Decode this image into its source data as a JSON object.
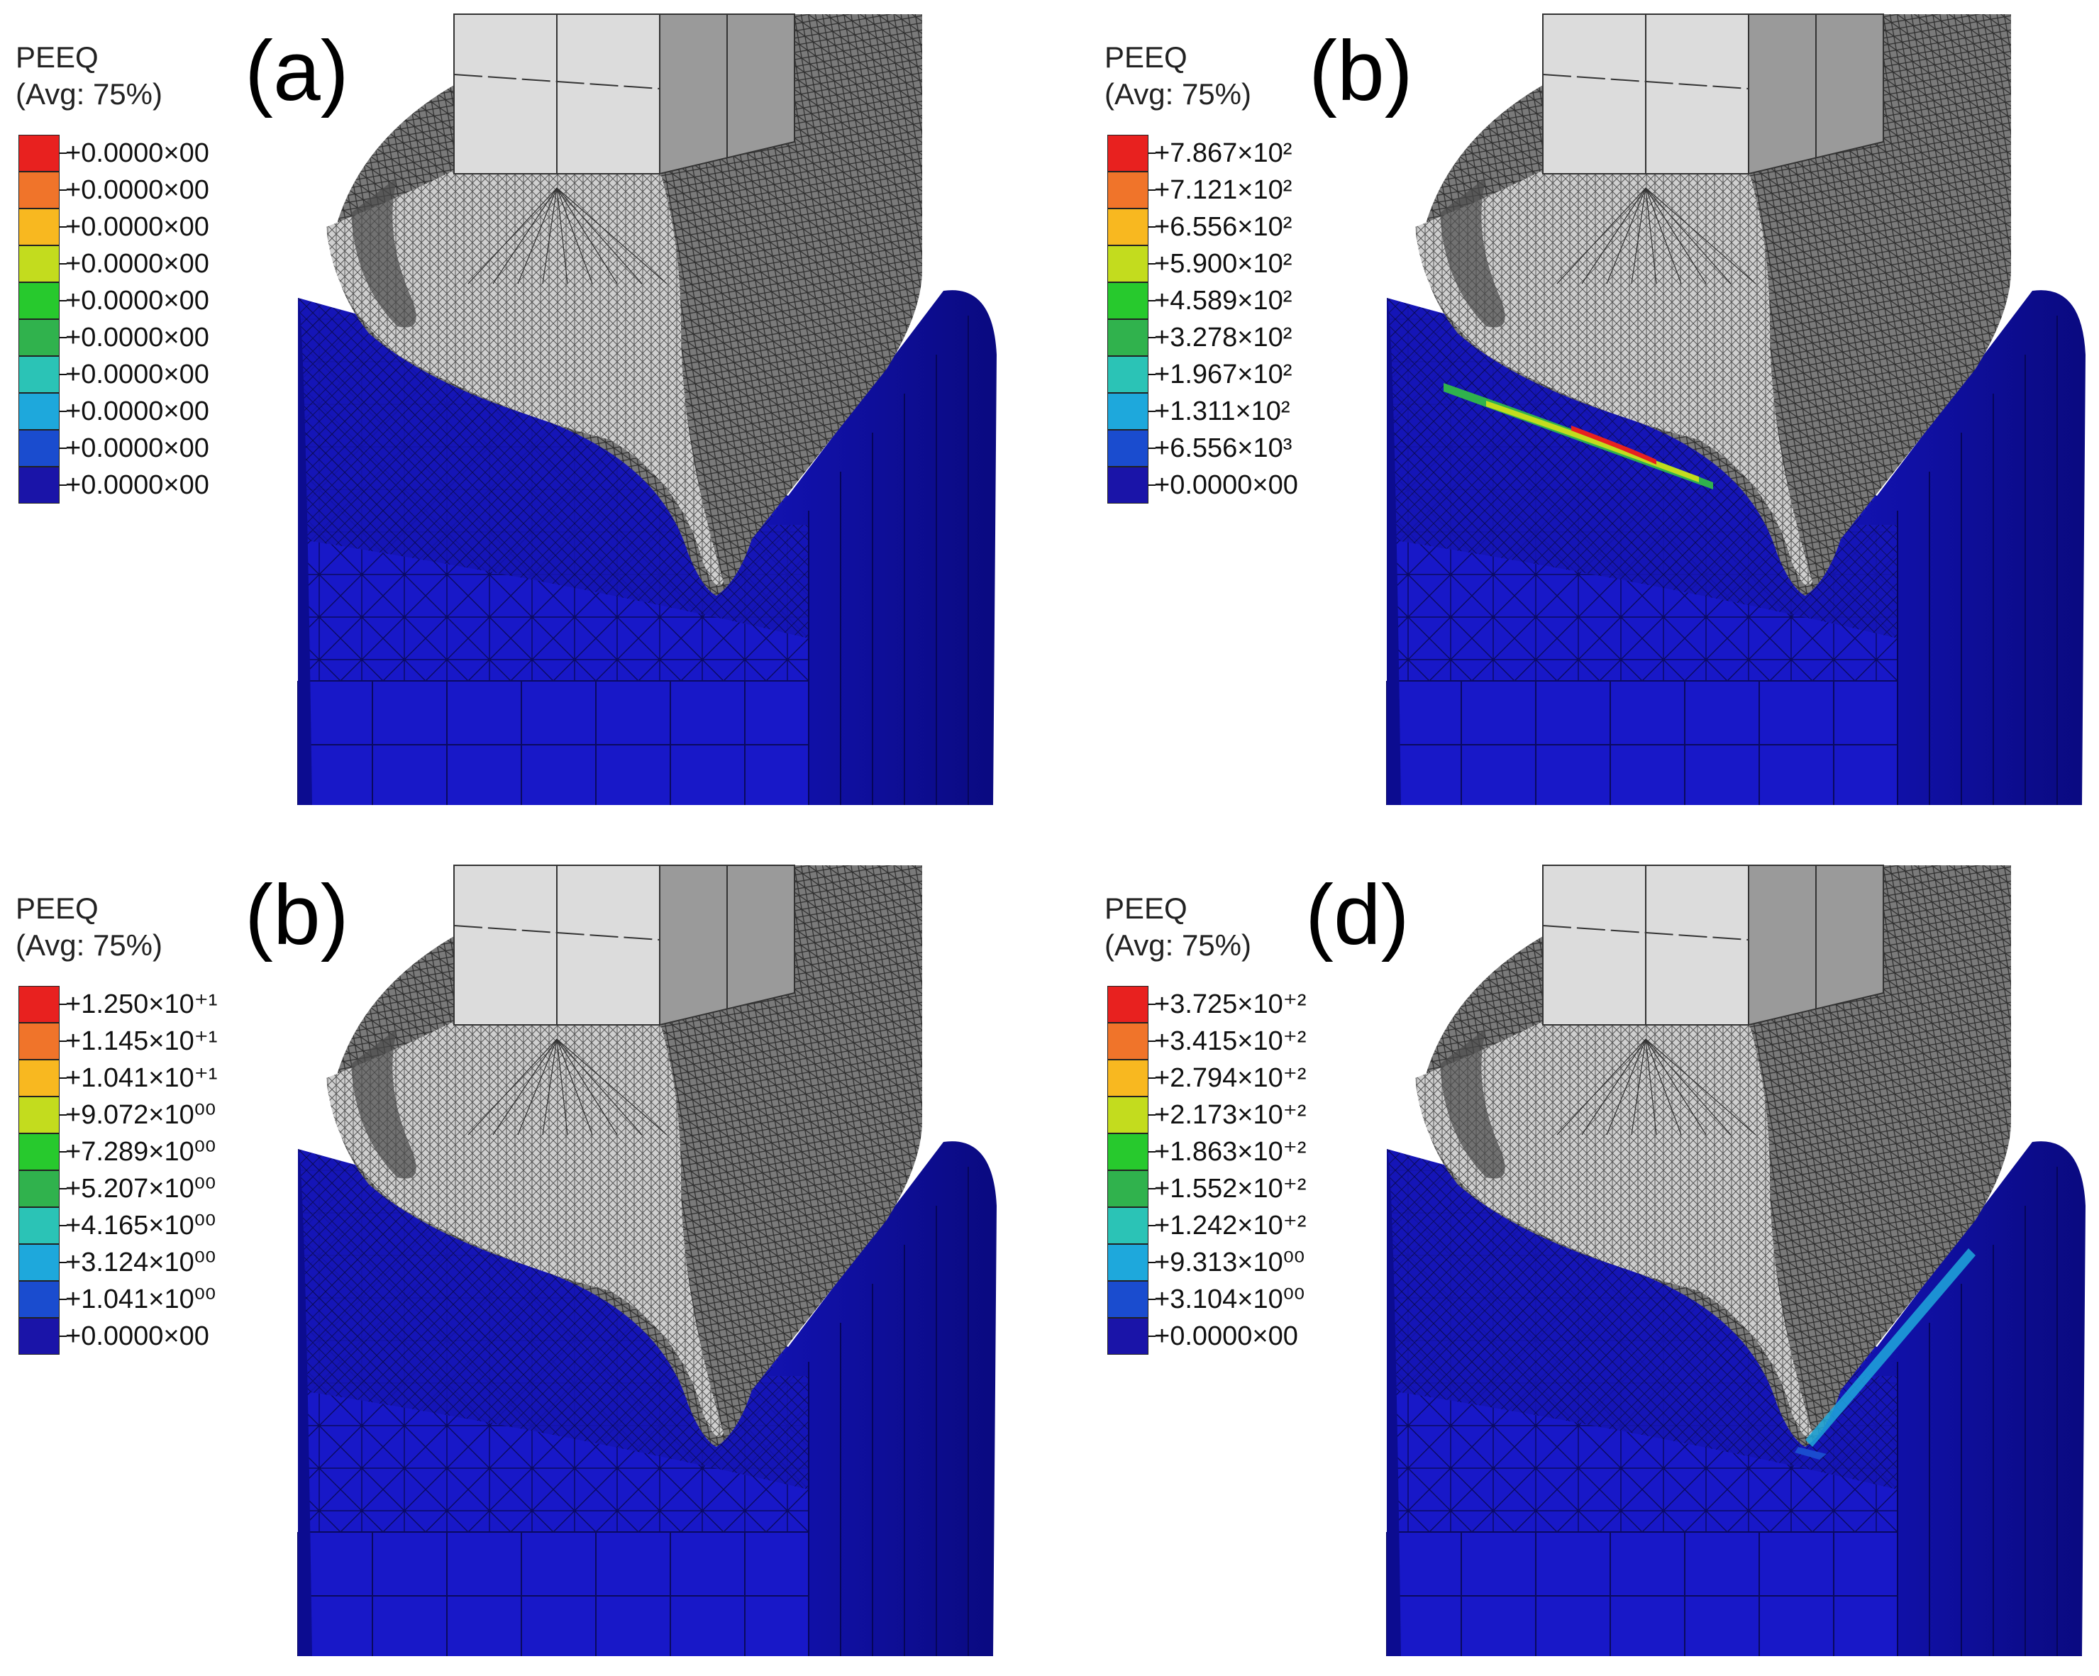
{
  "colors": {
    "scale": [
      "#e8211f",
      "#f0742a",
      "#f8b820",
      "#c3dc1e",
      "#27c92d",
      "#30b24d",
      "#2bc3b6",
      "#1ea8dc",
      "#1a4ccf",
      "#1a14a8"
    ],
    "workpiece": "#1818c8",
    "tool_light": "#d8d8d8",
    "tool_mesh": "#5c5c5c"
  },
  "panels": [
    {
      "label": "(a)",
      "legend_title": "PEEQ",
      "legend_subtitle": "(Avg: 75%)",
      "ticks": [
        "+0.0000×00",
        "+0.0000×00",
        "+0.0000×00",
        "+0.0000×00",
        "+0.0000×00",
        "+0.0000×00",
        "+0.0000×00",
        "+0.0000×00",
        "+0.0000×00",
        "+0.0000×00"
      ]
    },
    {
      "label": "(b)",
      "legend_title": "PEEQ",
      "legend_subtitle": "(Avg: 75%)",
      "ticks": [
        "+7.867×10²",
        "+7.121×10²",
        "+6.556×10²",
        "+5.900×10²",
        "+4.589×10²",
        "+3.278×10²",
        "+1.967×10²",
        "+1.311×10²",
        "+6.556×10³",
        "+0.0000×00"
      ]
    },
    {
      "label": "(b)",
      "legend_title": "PEEQ",
      "legend_subtitle": "(Avg: 75%)",
      "ticks": [
        "+1.250×10⁺¹",
        "+1.145×10⁺¹",
        "+1.041×10⁺¹",
        "+9.072×10⁰⁰",
        "+7.289×10⁰⁰",
        "+5.207×10⁰⁰",
        "+4.165×10⁰⁰",
        "+3.124×10⁰⁰",
        "+1.041×10⁰⁰",
        "+0.0000×00"
      ]
    },
    {
      "label": "(d)",
      "legend_title": "PEEQ",
      "legend_subtitle": "(Avg: 75%)",
      "ticks": [
        "+3.725×10⁺²",
        "+3.415×10⁺²",
        "+2.794×10⁺²",
        "+2.173×10⁺²",
        "+1.863×10⁺²",
        "+1.552×10⁺²",
        "+1.242×10⁺²",
        "+9.313×10⁰⁰",
        "+3.104×10⁰⁰",
        "+0.0000×00"
      ]
    }
  ]
}
